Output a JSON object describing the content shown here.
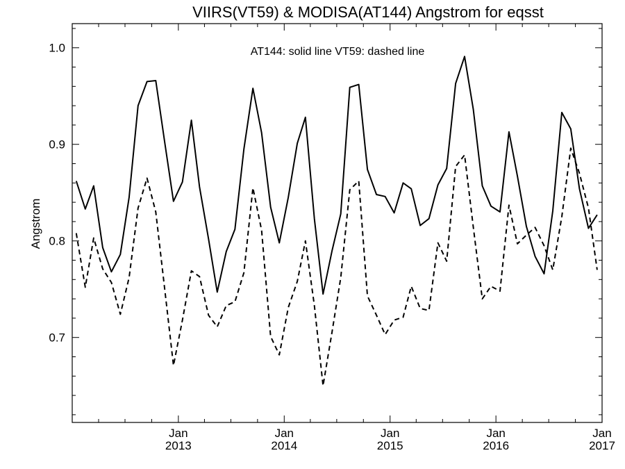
{
  "chart_data": {
    "type": "line",
    "title": "VIIRS(VT59) & MODISA(AT144)  Angstrom for eqsst",
    "annotation": "AT144: solid line   VT59: dashed line",
    "xlabel": "",
    "ylabel": "Angstrom",
    "xlim": [
      "2012-01-01",
      "2017-01-01"
    ],
    "ylim": [
      0.612,
      1.025
    ],
    "grid": false,
    "legend": "none",
    "y_ticks": [
      {
        "value": 0.7,
        "label": "0.7"
      },
      {
        "value": 0.8,
        "label": "0.8"
      },
      {
        "value": 0.9,
        "label": "0.9"
      },
      {
        "value": 1.0,
        "label": "1.0"
      }
    ],
    "x_ticks": [
      {
        "date": "2013-01-01",
        "month": "Jan",
        "year": "2013"
      },
      {
        "date": "2014-01-01",
        "month": "Jan",
        "year": "2014"
      },
      {
        "date": "2015-01-01",
        "month": "Jan",
        "year": "2015"
      },
      {
        "date": "2016-01-01",
        "month": "Jan",
        "year": "2016"
      },
      {
        "date": "2017-01-01",
        "month": "Jan",
        "year": "2017"
      }
    ],
    "x": [
      "2012-01-15",
      "2012-02-15",
      "2012-03-15",
      "2012-04-15",
      "2012-05-15",
      "2012-06-15",
      "2012-07-15",
      "2012-08-15",
      "2012-09-15",
      "2012-10-15",
      "2012-11-15",
      "2012-12-15",
      "2013-01-15",
      "2013-02-15",
      "2013-03-15",
      "2013-04-15",
      "2013-05-15",
      "2013-06-15",
      "2013-07-15",
      "2013-08-15",
      "2013-09-15",
      "2013-10-15",
      "2013-11-15",
      "2013-12-15",
      "2014-01-15",
      "2014-02-15",
      "2014-03-15",
      "2014-04-15",
      "2014-05-15",
      "2014-06-15",
      "2014-07-15",
      "2014-08-15",
      "2014-09-15",
      "2014-10-15",
      "2014-11-15",
      "2014-12-15",
      "2015-01-15",
      "2015-02-15",
      "2015-03-15",
      "2015-04-15",
      "2015-05-15",
      "2015-06-15",
      "2015-07-15",
      "2015-08-15",
      "2015-09-15",
      "2015-10-15",
      "2015-11-15",
      "2015-12-15",
      "2016-01-15",
      "2016-02-15",
      "2016-03-15",
      "2016-04-15",
      "2016-05-15",
      "2016-06-15",
      "2016-07-15",
      "2016-08-15",
      "2016-09-15",
      "2016-10-15",
      "2016-11-15",
      "2016-12-15"
    ],
    "series": [
      {
        "name": "AT144",
        "style": "solid",
        "color": "#000000",
        "values": [
          0.862,
          0.833,
          0.857,
          0.793,
          0.768,
          0.786,
          0.845,
          0.94,
          0.965,
          0.966,
          0.902,
          0.841,
          0.861,
          0.925,
          0.856,
          0.802,
          0.747,
          0.789,
          0.812,
          0.895,
          0.958,
          0.912,
          0.835,
          0.798,
          0.845,
          0.901,
          0.928,
          0.823,
          0.745,
          0.79,
          0.828,
          0.959,
          0.962,
          0.874,
          0.848,
          0.846,
          0.829,
          0.86,
          0.854,
          0.816,
          0.823,
          0.858,
          0.875,
          0.963,
          0.991,
          0.936,
          0.857,
          0.836,
          0.83,
          0.913,
          0.867,
          0.815,
          0.784,
          0.766,
          0.831,
          0.933,
          0.916,
          0.854,
          0.813,
          0.827
        ]
      },
      {
        "name": "VT59",
        "style": "dashed",
        "color": "#000000",
        "values": [
          0.808,
          0.752,
          0.803,
          0.771,
          0.757,
          0.724,
          0.762,
          0.834,
          0.865,
          0.83,
          0.75,
          0.671,
          0.718,
          0.769,
          0.763,
          0.723,
          0.711,
          0.733,
          0.737,
          0.767,
          0.855,
          0.811,
          0.701,
          0.682,
          0.731,
          0.758,
          0.8,
          0.733,
          0.65,
          0.706,
          0.762,
          0.853,
          0.862,
          0.743,
          0.723,
          0.703,
          0.718,
          0.721,
          0.753,
          0.73,
          0.728,
          0.798,
          0.779,
          0.877,
          0.889,
          0.814,
          0.74,
          0.753,
          0.748,
          0.837,
          0.797,
          0.806,
          0.814,
          0.795,
          0.77,
          0.825,
          0.896,
          0.87,
          0.834,
          0.77
        ]
      }
    ]
  }
}
